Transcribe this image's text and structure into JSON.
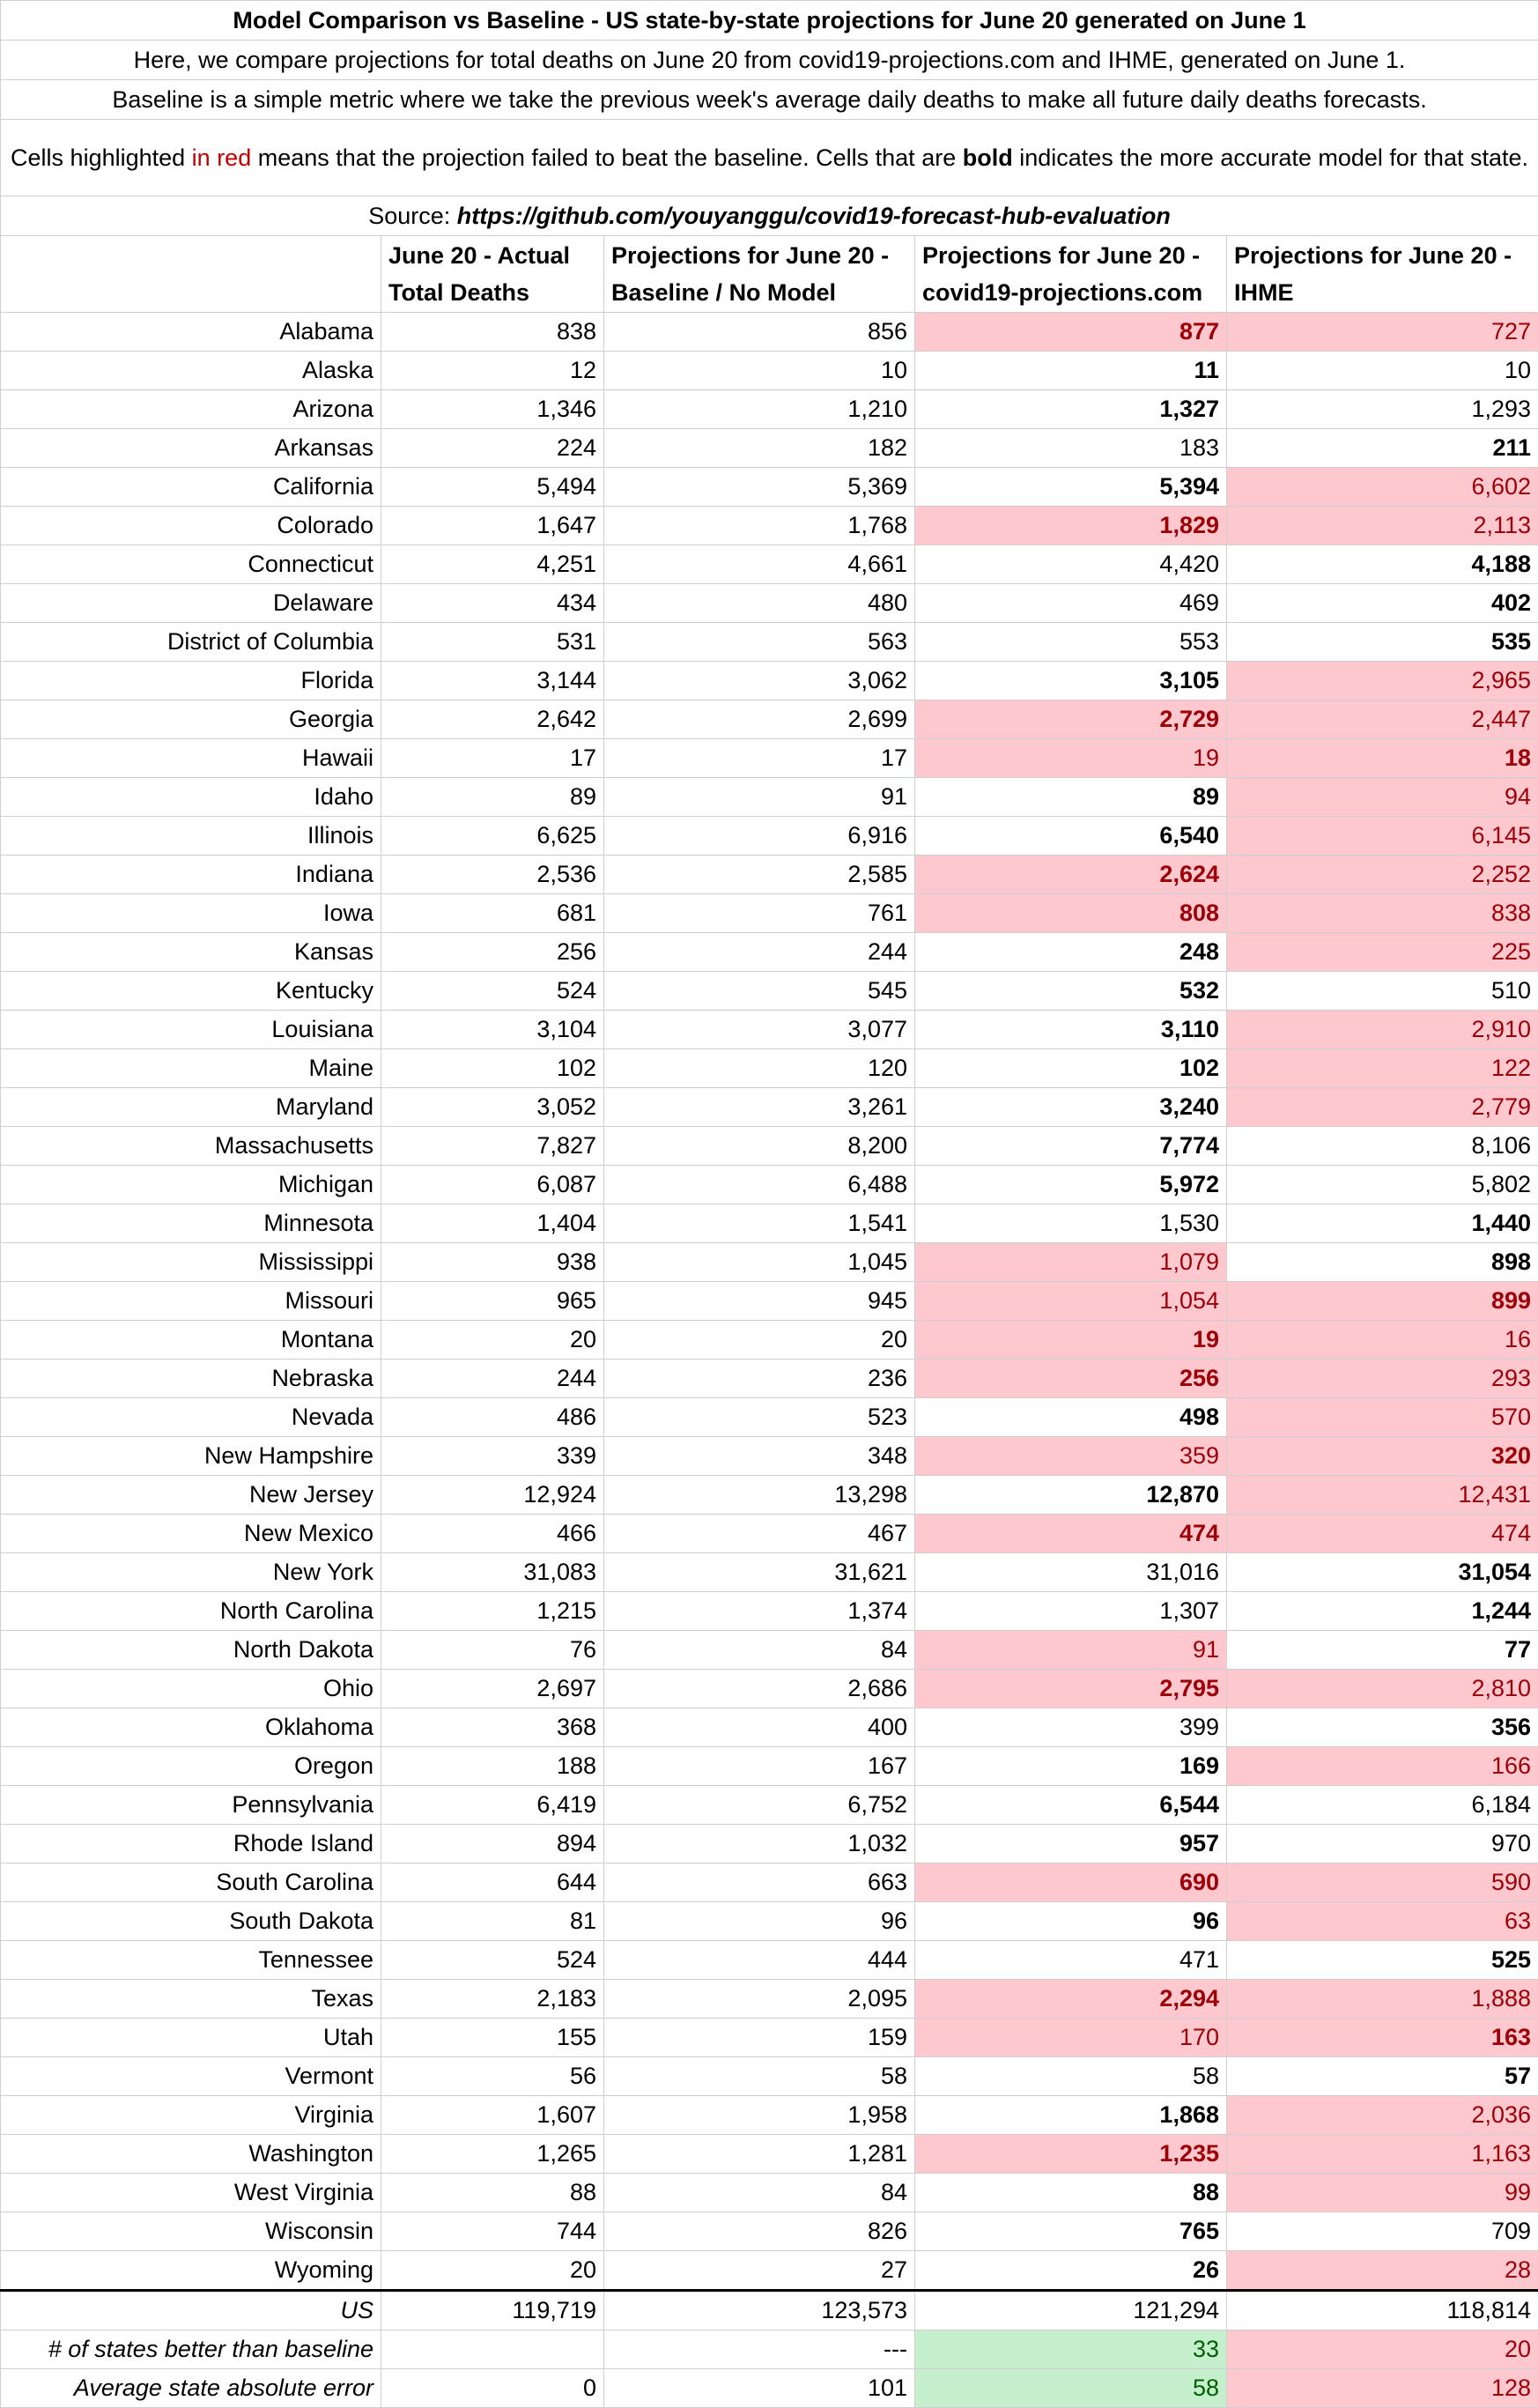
{
  "header": {
    "title": "Model Comparison vs Baseline - US state-by-state projections for June 20 generated on June 1",
    "line1": "Here, we compare projections for total deaths on June 20 from covid19-projections.com and IHME, generated on June 1.",
    "line2": "Baseline is a simple metric where we take the previous week's average daily deaths to make all future daily deaths forecasts.",
    "line3_a": "Cells highlighted ",
    "line3_red": "in red",
    "line3_b": " means that the projection failed to beat the baseline. Cells that are ",
    "line3_bold": "bold",
    "line3_c": " indicates the more accurate model for that state.",
    "source_label": "Source: ",
    "source_url": "https://github.com/youyanggu/covid19-forecast-hub-evaluation"
  },
  "columns": [
    "",
    "June 20 - Actual Total Deaths",
    "Projections for June 20 - Baseline / No Model",
    "Projections for June 20 - covid19-projections.com",
    "Projections for June 20 - IHME"
  ],
  "colors": {
    "red_fill": "#ffc7ce",
    "red_text": "#9c0006",
    "green_fill": "#c6efce",
    "green_text": "#006100",
    "legend_red": "#c00000"
  },
  "rows": [
    {
      "state": "Alabama",
      "actual": "838",
      "baseline": "856",
      "c19": "877",
      "c19_red": true,
      "c19_bold": true,
      "ihme": "727",
      "ihme_red": true,
      "ihme_bold": false
    },
    {
      "state": "Alaska",
      "actual": "12",
      "baseline": "10",
      "c19": "11",
      "c19_red": false,
      "c19_bold": true,
      "ihme": "10",
      "ihme_red": false,
      "ihme_bold": false
    },
    {
      "state": "Arizona",
      "actual": "1,346",
      "baseline": "1,210",
      "c19": "1,327",
      "c19_red": false,
      "c19_bold": true,
      "ihme": "1,293",
      "ihme_red": false,
      "ihme_bold": false
    },
    {
      "state": "Arkansas",
      "actual": "224",
      "baseline": "182",
      "c19": "183",
      "c19_red": false,
      "c19_bold": false,
      "ihme": "211",
      "ihme_red": false,
      "ihme_bold": true
    },
    {
      "state": "California",
      "actual": "5,494",
      "baseline": "5,369",
      "c19": "5,394",
      "c19_red": false,
      "c19_bold": true,
      "ihme": "6,602",
      "ihme_red": true,
      "ihme_bold": false
    },
    {
      "state": "Colorado",
      "actual": "1,647",
      "baseline": "1,768",
      "c19": "1,829",
      "c19_red": true,
      "c19_bold": true,
      "ihme": "2,113",
      "ihme_red": true,
      "ihme_bold": false
    },
    {
      "state": "Connecticut",
      "actual": "4,251",
      "baseline": "4,661",
      "c19": "4,420",
      "c19_red": false,
      "c19_bold": false,
      "ihme": "4,188",
      "ihme_red": false,
      "ihme_bold": true
    },
    {
      "state": "Delaware",
      "actual": "434",
      "baseline": "480",
      "c19": "469",
      "c19_red": false,
      "c19_bold": false,
      "ihme": "402",
      "ihme_red": false,
      "ihme_bold": true
    },
    {
      "state": "District of Columbia",
      "actual": "531",
      "baseline": "563",
      "c19": "553",
      "c19_red": false,
      "c19_bold": false,
      "ihme": "535",
      "ihme_red": false,
      "ihme_bold": true
    },
    {
      "state": "Florida",
      "actual": "3,144",
      "baseline": "3,062",
      "c19": "3,105",
      "c19_red": false,
      "c19_bold": true,
      "ihme": "2,965",
      "ihme_red": true,
      "ihme_bold": false
    },
    {
      "state": "Georgia",
      "actual": "2,642",
      "baseline": "2,699",
      "c19": "2,729",
      "c19_red": true,
      "c19_bold": true,
      "ihme": "2,447",
      "ihme_red": true,
      "ihme_bold": false
    },
    {
      "state": "Hawaii",
      "actual": "17",
      "baseline": "17",
      "c19": "19",
      "c19_red": true,
      "c19_bold": false,
      "ihme": "18",
      "ihme_red": true,
      "ihme_bold": true
    },
    {
      "state": "Idaho",
      "actual": "89",
      "baseline": "91",
      "c19": "89",
      "c19_red": false,
      "c19_bold": true,
      "ihme": "94",
      "ihme_red": true,
      "ihme_bold": false
    },
    {
      "state": "Illinois",
      "actual": "6,625",
      "baseline": "6,916",
      "c19": "6,540",
      "c19_red": false,
      "c19_bold": true,
      "ihme": "6,145",
      "ihme_red": true,
      "ihme_bold": false
    },
    {
      "state": "Indiana",
      "actual": "2,536",
      "baseline": "2,585",
      "c19": "2,624",
      "c19_red": true,
      "c19_bold": true,
      "ihme": "2,252",
      "ihme_red": true,
      "ihme_bold": false
    },
    {
      "state": "Iowa",
      "actual": "681",
      "baseline": "761",
      "c19": "808",
      "c19_red": true,
      "c19_bold": true,
      "ihme": "838",
      "ihme_red": true,
      "ihme_bold": false
    },
    {
      "state": "Kansas",
      "actual": "256",
      "baseline": "244",
      "c19": "248",
      "c19_red": false,
      "c19_bold": true,
      "ihme": "225",
      "ihme_red": true,
      "ihme_bold": false
    },
    {
      "state": "Kentucky",
      "actual": "524",
      "baseline": "545",
      "c19": "532",
      "c19_red": false,
      "c19_bold": true,
      "ihme": "510",
      "ihme_red": false,
      "ihme_bold": false
    },
    {
      "state": "Louisiana",
      "actual": "3,104",
      "baseline": "3,077",
      "c19": "3,110",
      "c19_red": false,
      "c19_bold": true,
      "ihme": "2,910",
      "ihme_red": true,
      "ihme_bold": false
    },
    {
      "state": "Maine",
      "actual": "102",
      "baseline": "120",
      "c19": "102",
      "c19_red": false,
      "c19_bold": true,
      "ihme": "122",
      "ihme_red": true,
      "ihme_bold": false
    },
    {
      "state": "Maryland",
      "actual": "3,052",
      "baseline": "3,261",
      "c19": "3,240",
      "c19_red": false,
      "c19_bold": true,
      "ihme": "2,779",
      "ihme_red": true,
      "ihme_bold": false
    },
    {
      "state": "Massachusetts",
      "actual": "7,827",
      "baseline": "8,200",
      "c19": "7,774",
      "c19_red": false,
      "c19_bold": true,
      "ihme": "8,106",
      "ihme_red": false,
      "ihme_bold": false
    },
    {
      "state": "Michigan",
      "actual": "6,087",
      "baseline": "6,488",
      "c19": "5,972",
      "c19_red": false,
      "c19_bold": true,
      "ihme": "5,802",
      "ihme_red": false,
      "ihme_bold": false
    },
    {
      "state": "Minnesota",
      "actual": "1,404",
      "baseline": "1,541",
      "c19": "1,530",
      "c19_red": false,
      "c19_bold": false,
      "ihme": "1,440",
      "ihme_red": false,
      "ihme_bold": true
    },
    {
      "state": "Mississippi",
      "actual": "938",
      "baseline": "1,045",
      "c19": "1,079",
      "c19_red": true,
      "c19_bold": false,
      "ihme": "898",
      "ihme_red": false,
      "ihme_bold": true
    },
    {
      "state": "Missouri",
      "actual": "965",
      "baseline": "945",
      "c19": "1,054",
      "c19_red": true,
      "c19_bold": false,
      "ihme": "899",
      "ihme_red": true,
      "ihme_bold": true
    },
    {
      "state": "Montana",
      "actual": "20",
      "baseline": "20",
      "c19": "19",
      "c19_red": true,
      "c19_bold": true,
      "ihme": "16",
      "ihme_red": true,
      "ihme_bold": false
    },
    {
      "state": "Nebraska",
      "actual": "244",
      "baseline": "236",
      "c19": "256",
      "c19_red": true,
      "c19_bold": true,
      "ihme": "293",
      "ihme_red": true,
      "ihme_bold": false
    },
    {
      "state": "Nevada",
      "actual": "486",
      "baseline": "523",
      "c19": "498",
      "c19_red": false,
      "c19_bold": true,
      "ihme": "570",
      "ihme_red": true,
      "ihme_bold": false
    },
    {
      "state": "New Hampshire",
      "actual": "339",
      "baseline": "348",
      "c19": "359",
      "c19_red": true,
      "c19_bold": false,
      "ihme": "320",
      "ihme_red": true,
      "ihme_bold": true
    },
    {
      "state": "New Jersey",
      "actual": "12,924",
      "baseline": "13,298",
      "c19": "12,870",
      "c19_red": false,
      "c19_bold": true,
      "ihme": "12,431",
      "ihme_red": true,
      "ihme_bold": false
    },
    {
      "state": "New Mexico",
      "actual": "466",
      "baseline": "467",
      "c19": "474",
      "c19_red": true,
      "c19_bold": true,
      "ihme": "474",
      "ihme_red": true,
      "ihme_bold": false
    },
    {
      "state": "New York",
      "actual": "31,083",
      "baseline": "31,621",
      "c19": "31,016",
      "c19_red": false,
      "c19_bold": false,
      "ihme": "31,054",
      "ihme_red": false,
      "ihme_bold": true
    },
    {
      "state": "North Carolina",
      "actual": "1,215",
      "baseline": "1,374",
      "c19": "1,307",
      "c19_red": false,
      "c19_bold": false,
      "ihme": "1,244",
      "ihme_red": false,
      "ihme_bold": true
    },
    {
      "state": "North Dakota",
      "actual": "76",
      "baseline": "84",
      "c19": "91",
      "c19_red": true,
      "c19_bold": false,
      "ihme": "77",
      "ihme_red": false,
      "ihme_bold": true
    },
    {
      "state": "Ohio",
      "actual": "2,697",
      "baseline": "2,686",
      "c19": "2,795",
      "c19_red": true,
      "c19_bold": true,
      "ihme": "2,810",
      "ihme_red": true,
      "ihme_bold": false
    },
    {
      "state": "Oklahoma",
      "actual": "368",
      "baseline": "400",
      "c19": "399",
      "c19_red": false,
      "c19_bold": false,
      "ihme": "356",
      "ihme_red": false,
      "ihme_bold": true
    },
    {
      "state": "Oregon",
      "actual": "188",
      "baseline": "167",
      "c19": "169",
      "c19_red": false,
      "c19_bold": true,
      "ihme": "166",
      "ihme_red": true,
      "ihme_bold": false
    },
    {
      "state": "Pennsylvania",
      "actual": "6,419",
      "baseline": "6,752",
      "c19": "6,544",
      "c19_red": false,
      "c19_bold": true,
      "ihme": "6,184",
      "ihme_red": false,
      "ihme_bold": false
    },
    {
      "state": "Rhode Island",
      "actual": "894",
      "baseline": "1,032",
      "c19": "957",
      "c19_red": false,
      "c19_bold": true,
      "ihme": "970",
      "ihme_red": false,
      "ihme_bold": false
    },
    {
      "state": "South Carolina",
      "actual": "644",
      "baseline": "663",
      "c19": "690",
      "c19_red": true,
      "c19_bold": true,
      "ihme": "590",
      "ihme_red": true,
      "ihme_bold": false
    },
    {
      "state": "South Dakota",
      "actual": "81",
      "baseline": "96",
      "c19": "96",
      "c19_red": false,
      "c19_bold": true,
      "ihme": "63",
      "ihme_red": true,
      "ihme_bold": false
    },
    {
      "state": "Tennessee",
      "actual": "524",
      "baseline": "444",
      "c19": "471",
      "c19_red": false,
      "c19_bold": false,
      "ihme": "525",
      "ihme_red": false,
      "ihme_bold": true
    },
    {
      "state": "Texas",
      "actual": "2,183",
      "baseline": "2,095",
      "c19": "2,294",
      "c19_red": true,
      "c19_bold": true,
      "ihme": "1,888",
      "ihme_red": true,
      "ihme_bold": false
    },
    {
      "state": "Utah",
      "actual": "155",
      "baseline": "159",
      "c19": "170",
      "c19_red": true,
      "c19_bold": false,
      "ihme": "163",
      "ihme_red": true,
      "ihme_bold": true
    },
    {
      "state": "Vermont",
      "actual": "56",
      "baseline": "58",
      "c19": "58",
      "c19_red": false,
      "c19_bold": false,
      "ihme": "57",
      "ihme_red": false,
      "ihme_bold": true
    },
    {
      "state": "Virginia",
      "actual": "1,607",
      "baseline": "1,958",
      "c19": "1,868",
      "c19_red": false,
      "c19_bold": true,
      "ihme": "2,036",
      "ihme_red": true,
      "ihme_bold": false
    },
    {
      "state": "Washington",
      "actual": "1,265",
      "baseline": "1,281",
      "c19": "1,235",
      "c19_red": true,
      "c19_bold": true,
      "ihme": "1,163",
      "ihme_red": true,
      "ihme_bold": false
    },
    {
      "state": "West Virginia",
      "actual": "88",
      "baseline": "84",
      "c19": "88",
      "c19_red": false,
      "c19_bold": true,
      "ihme": "99",
      "ihme_red": true,
      "ihme_bold": false
    },
    {
      "state": "Wisconsin",
      "actual": "744",
      "baseline": "826",
      "c19": "765",
      "c19_red": false,
      "c19_bold": true,
      "ihme": "709",
      "ihme_red": false,
      "ihme_bold": false
    },
    {
      "state": "Wyoming",
      "actual": "20",
      "baseline": "27",
      "c19": "26",
      "c19_red": false,
      "c19_bold": true,
      "ihme": "28",
      "ihme_red": true,
      "ihme_bold": false
    }
  ],
  "summary": [
    {
      "label": "US",
      "actual": "119,719",
      "baseline": "123,573",
      "c19": "121,294",
      "c19_fill": "",
      "ihme": "118,814",
      "ihme_fill": ""
    },
    {
      "label": "# of states better than baseline",
      "actual": "",
      "baseline": "---",
      "c19": "33",
      "c19_fill": "green",
      "ihme": "20",
      "ihme_fill": "red"
    },
    {
      "label": "Average state absolute error",
      "actual": "0",
      "baseline": "101",
      "c19": "58",
      "c19_fill": "green",
      "ihme": "128",
      "ihme_fill": "red"
    }
  ]
}
